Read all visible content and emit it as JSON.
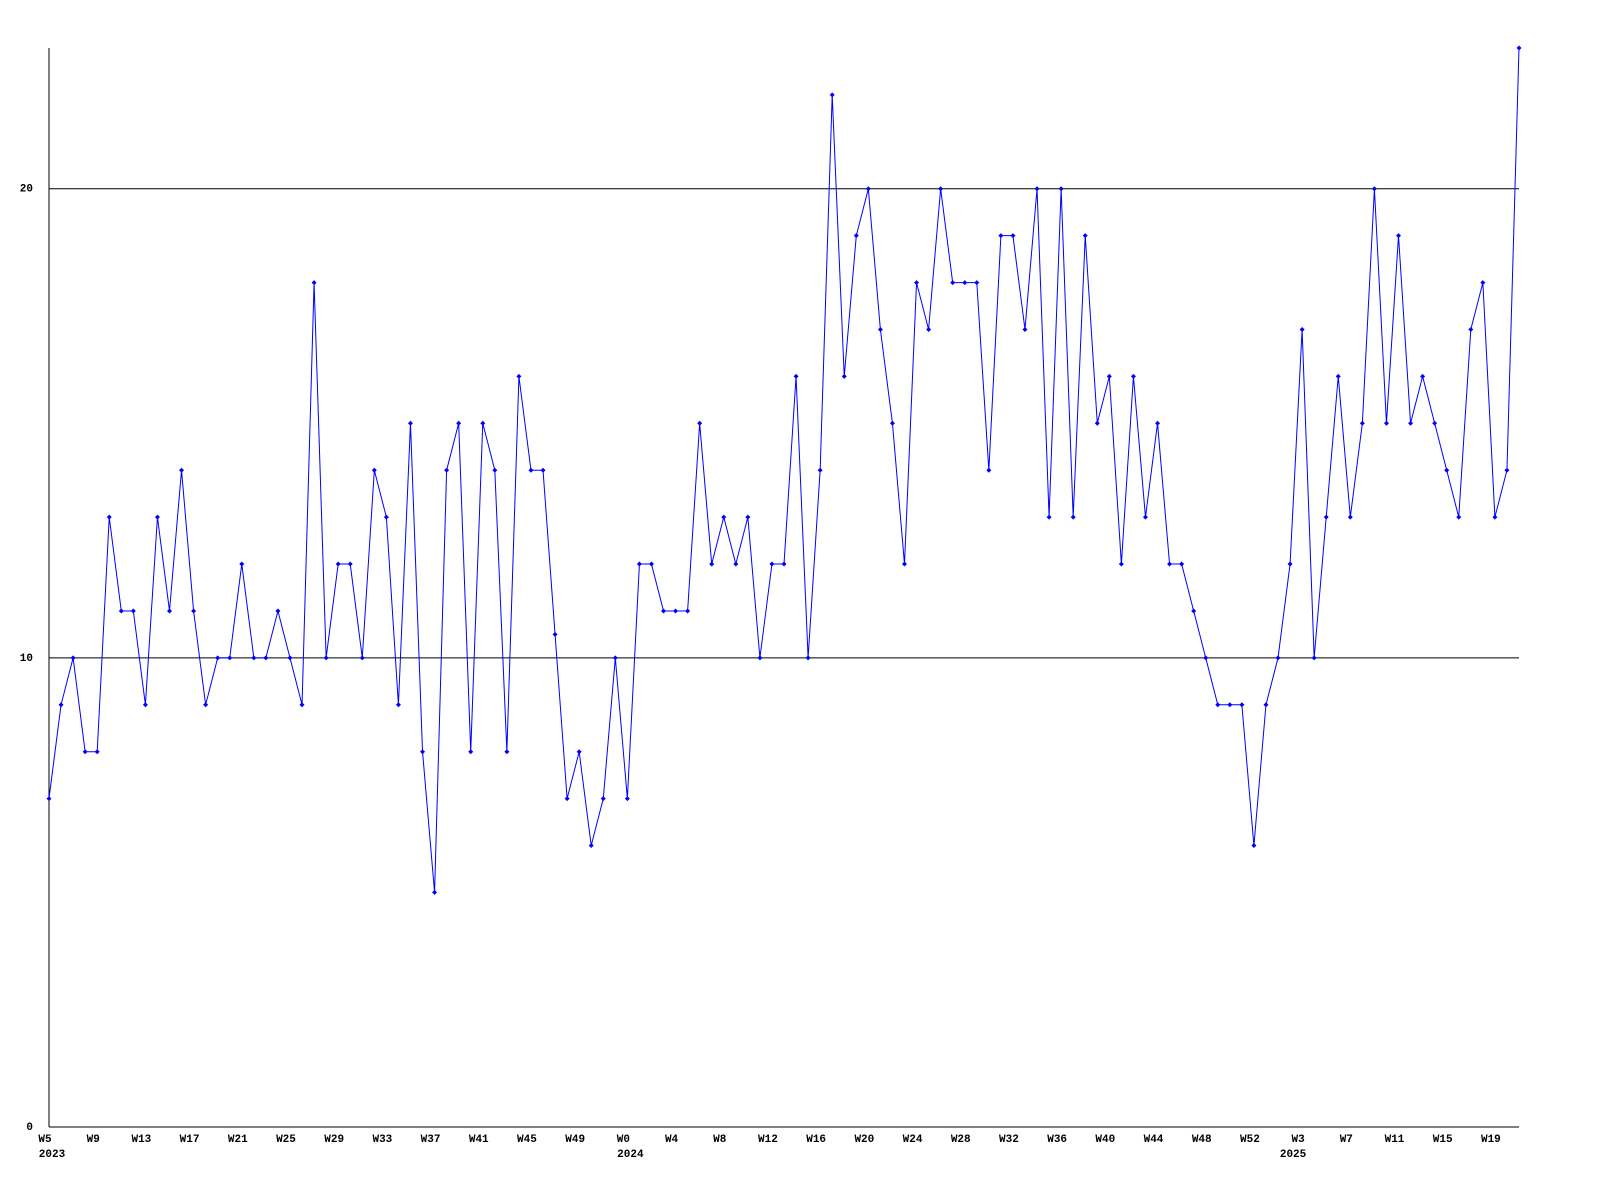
{
  "chart_data": {
    "type": "line",
    "categories": [
      "W5",
      null,
      null,
      null,
      "W9",
      null,
      null,
      null,
      "W13",
      null,
      null,
      null,
      "W17",
      null,
      null,
      null,
      "W21",
      null,
      null,
      null,
      "W25",
      null,
      null,
      null,
      "W29",
      null,
      null,
      null,
      "W33",
      null,
      null,
      null,
      "W37",
      null,
      null,
      null,
      "W41",
      null,
      null,
      null,
      "W45",
      null,
      null,
      null,
      "W49",
      null,
      null,
      null,
      "W0",
      null,
      null,
      null,
      "W4",
      null,
      null,
      null,
      "W8",
      null,
      null,
      null,
      "W12",
      null,
      null,
      null,
      "W16",
      null,
      null,
      null,
      "W20",
      null,
      null,
      null,
      "W24",
      null,
      null,
      null,
      "W28",
      null,
      null,
      null,
      "W32",
      null,
      null,
      null,
      "W36",
      null,
      null,
      null,
      "W40",
      null,
      null,
      null,
      "W44",
      null,
      null,
      null,
      "W48",
      null,
      null,
      null,
      "W52",
      null,
      null,
      null,
      "W3",
      null,
      null,
      null,
      "W7",
      null,
      null,
      null,
      "W11",
      null,
      null,
      null,
      "W15",
      null,
      null,
      null,
      "W19",
      null,
      null
    ],
    "year_labels": [
      "2023",
      null,
      null,
      null,
      null,
      null,
      null,
      null,
      null,
      null,
      null,
      null,
      null,
      null,
      null,
      null,
      null,
      null,
      null,
      null,
      null,
      null,
      null,
      null,
      null,
      null,
      null,
      null,
      null,
      null,
      null,
      null,
      null,
      null,
      null,
      null,
      null,
      null,
      null,
      null,
      null,
      null,
      null,
      null,
      null,
      null,
      null,
      null,
      "2024",
      null,
      null,
      null,
      null,
      null,
      null,
      null,
      null,
      null,
      null,
      null,
      null,
      null,
      null,
      null,
      null,
      null,
      null,
      null,
      null,
      null,
      null,
      null,
      null,
      null,
      null,
      null,
      null,
      null,
      null,
      null,
      null,
      null,
      null,
      null,
      null,
      null,
      null,
      null,
      null,
      null,
      null,
      null,
      null,
      null,
      null,
      null,
      null,
      null,
      null,
      null,
      null,
      null,
      null,
      "2025",
      null,
      null,
      null,
      null,
      null,
      null,
      null,
      null,
      null,
      null,
      null,
      null,
      null,
      null,
      null,
      null,
      null,
      null,
      null,
      null,
      null
    ],
    "series": [
      {
        "color": "#0000ff",
        "values": [
          7,
          9,
          10,
          8,
          8,
          13,
          11,
          11,
          9,
          13,
          11,
          14,
          11,
          9,
          10,
          10,
          12,
          10,
          10,
          11,
          10,
          9,
          18,
          10,
          12,
          12,
          10,
          14,
          13,
          9,
          15,
          8,
          5,
          14,
          15,
          8,
          15,
          14,
          8,
          16,
          14,
          14,
          10.5,
          7,
          8,
          6,
          7,
          10,
          7,
          12,
          12,
          11,
          11,
          11,
          15,
          12,
          13,
          12,
          13,
          10,
          12,
          12,
          16,
          10,
          14,
          22,
          16,
          19,
          20,
          17,
          15,
          12,
          18,
          17,
          20,
          18,
          18,
          18,
          14,
          19,
          19,
          17,
          20,
          13,
          20,
          13,
          19,
          15,
          16,
          12,
          16,
          13,
          15,
          12,
          12,
          11,
          10,
          9,
          9,
          9,
          6,
          9,
          10,
          12,
          17,
          10,
          13,
          16,
          13,
          15,
          20,
          15,
          19,
          15,
          16,
          15,
          14,
          13,
          17,
          18,
          13,
          14,
          23
        ]
      }
    ],
    "ylim": [
      0,
      23
    ],
    "yticks": [
      0,
      10,
      20
    ],
    "grid": true
  }
}
